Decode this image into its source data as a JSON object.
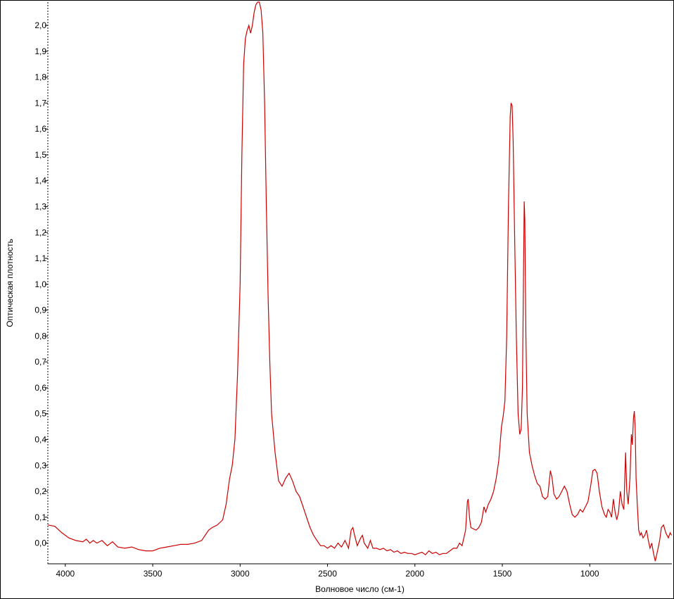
{
  "chart_data": {
    "type": "line",
    "title": "",
    "xlabel": "Волновое число (см-1)",
    "ylabel": "Оптическая плотность",
    "x_reversed": true,
    "xlim": [
      4100,
      530
    ],
    "ylim": [
      -0.08,
      2.09
    ],
    "grid": false,
    "line_color": "#cc0000",
    "x_ticks": [
      {
        "value": 4000,
        "label": "4000"
      },
      {
        "value": 3500,
        "label": "3500"
      },
      {
        "value": 3000,
        "label": "3000"
      },
      {
        "value": 2500,
        "label": "2500"
      },
      {
        "value": 2000,
        "label": "2000"
      },
      {
        "value": 1500,
        "label": "1500"
      },
      {
        "value": 1000,
        "label": "1000"
      }
    ],
    "y_ticks": [
      {
        "value": 0.0,
        "label": "0,0"
      },
      {
        "value": 0.1,
        "label": "0,1"
      },
      {
        "value": 0.2,
        "label": "0,2"
      },
      {
        "value": 0.3,
        "label": "0,3"
      },
      {
        "value": 0.4,
        "label": "0,4"
      },
      {
        "value": 0.5,
        "label": "0,5"
      },
      {
        "value": 0.6,
        "label": "0,6"
      },
      {
        "value": 0.7,
        "label": "0,7"
      },
      {
        "value": 0.8,
        "label": "0,8"
      },
      {
        "value": 0.9,
        "label": "0,9"
      },
      {
        "value": 1.0,
        "label": "1,0"
      },
      {
        "value": 1.1,
        "label": "1,1"
      },
      {
        "value": 1.2,
        "label": "1,2"
      },
      {
        "value": 1.3,
        "label": "1,3"
      },
      {
        "value": 1.4,
        "label": "1,4"
      },
      {
        "value": 1.5,
        "label": "1,5"
      },
      {
        "value": 1.6,
        "label": "1,6"
      },
      {
        "value": 1.7,
        "label": "1,7"
      },
      {
        "value": 1.8,
        "label": "1,8"
      },
      {
        "value": 1.9,
        "label": "1,9"
      },
      {
        "value": 2.0,
        "label": "2,0"
      }
    ],
    "series": [
      {
        "points": [
          [
            4100,
            0.07
          ],
          [
            4060,
            0.065
          ],
          [
            4020,
            0.04
          ],
          [
            3980,
            0.02
          ],
          [
            3940,
            0.01
          ],
          [
            3900,
            0.005
          ],
          [
            3880,
            0.015
          ],
          [
            3860,
            0.0
          ],
          [
            3840,
            0.01
          ],
          [
            3820,
            0.0
          ],
          [
            3790,
            0.01
          ],
          [
            3760,
            -0.01
          ],
          [
            3730,
            0.005
          ],
          [
            3700,
            -0.015
          ],
          [
            3660,
            -0.02
          ],
          [
            3620,
            -0.015
          ],
          [
            3580,
            -0.025
          ],
          [
            3540,
            -0.03
          ],
          [
            3500,
            -0.03
          ],
          [
            3460,
            -0.02
          ],
          [
            3420,
            -0.015
          ],
          [
            3380,
            -0.01
          ],
          [
            3340,
            -0.005
          ],
          [
            3300,
            -0.005
          ],
          [
            3260,
            0.0
          ],
          [
            3220,
            0.01
          ],
          [
            3200,
            0.03
          ],
          [
            3180,
            0.05
          ],
          [
            3160,
            0.06
          ],
          [
            3130,
            0.07
          ],
          [
            3100,
            0.09
          ],
          [
            3080,
            0.15
          ],
          [
            3060,
            0.25
          ],
          [
            3045,
            0.3
          ],
          [
            3030,
            0.4
          ],
          [
            3015,
            0.65
          ],
          [
            3000,
            1.0
          ],
          [
            2990,
            1.5
          ],
          [
            2980,
            1.85
          ],
          [
            2970,
            1.95
          ],
          [
            2960,
            1.98
          ],
          [
            2950,
            2.0
          ],
          [
            2940,
            1.97
          ],
          [
            2930,
            2.0
          ],
          [
            2920,
            2.05
          ],
          [
            2910,
            2.08
          ],
          [
            2900,
            2.09
          ],
          [
            2890,
            2.09
          ],
          [
            2880,
            2.06
          ],
          [
            2870,
            1.97
          ],
          [
            2860,
            1.7
          ],
          [
            2850,
            1.3
          ],
          [
            2840,
            0.95
          ],
          [
            2830,
            0.7
          ],
          [
            2820,
            0.5
          ],
          [
            2800,
            0.35
          ],
          [
            2780,
            0.24
          ],
          [
            2760,
            0.22
          ],
          [
            2740,
            0.25
          ],
          [
            2720,
            0.27
          ],
          [
            2700,
            0.24
          ],
          [
            2680,
            0.2
          ],
          [
            2660,
            0.18
          ],
          [
            2640,
            0.14
          ],
          [
            2620,
            0.1
          ],
          [
            2600,
            0.06
          ],
          [
            2580,
            0.03
          ],
          [
            2560,
            0.01
          ],
          [
            2540,
            -0.01
          ],
          [
            2520,
            -0.01
          ],
          [
            2500,
            -0.02
          ],
          [
            2480,
            -0.01
          ],
          [
            2460,
            -0.02
          ],
          [
            2440,
            0.0
          ],
          [
            2420,
            -0.015
          ],
          [
            2400,
            0.01
          ],
          [
            2380,
            -0.02
          ],
          [
            2365,
            0.05
          ],
          [
            2355,
            0.06
          ],
          [
            2345,
            0.03
          ],
          [
            2330,
            -0.01
          ],
          [
            2310,
            0.02
          ],
          [
            2300,
            0.03
          ],
          [
            2290,
            0.0
          ],
          [
            2270,
            -0.02
          ],
          [
            2255,
            0.01
          ],
          [
            2240,
            -0.02
          ],
          [
            2220,
            -0.02
          ],
          [
            2200,
            -0.025
          ],
          [
            2180,
            -0.02
          ],
          [
            2160,
            -0.03
          ],
          [
            2140,
            -0.025
          ],
          [
            2120,
            -0.035
          ],
          [
            2100,
            -0.03
          ],
          [
            2080,
            -0.04
          ],
          [
            2060,
            -0.035
          ],
          [
            2040,
            -0.04
          ],
          [
            2020,
            -0.04
          ],
          [
            2000,
            -0.045
          ],
          [
            1980,
            -0.04
          ],
          [
            1960,
            -0.035
          ],
          [
            1940,
            -0.045
          ],
          [
            1920,
            -0.03
          ],
          [
            1900,
            -0.04
          ],
          [
            1880,
            -0.035
          ],
          [
            1860,
            -0.045
          ],
          [
            1840,
            -0.04
          ],
          [
            1820,
            -0.04
          ],
          [
            1800,
            -0.03
          ],
          [
            1780,
            -0.02
          ],
          [
            1760,
            -0.02
          ],
          [
            1745,
            0.0
          ],
          [
            1730,
            -0.01
          ],
          [
            1720,
            0.02
          ],
          [
            1710,
            0.05
          ],
          [
            1700,
            0.16
          ],
          [
            1695,
            0.17
          ],
          [
            1688,
            0.1
          ],
          [
            1680,
            0.06
          ],
          [
            1665,
            0.055
          ],
          [
            1650,
            0.05
          ],
          [
            1635,
            0.06
          ],
          [
            1620,
            0.08
          ],
          [
            1605,
            0.14
          ],
          [
            1595,
            0.12
          ],
          [
            1580,
            0.15
          ],
          [
            1565,
            0.17
          ],
          [
            1550,
            0.2
          ],
          [
            1535,
            0.25
          ],
          [
            1520,
            0.32
          ],
          [
            1505,
            0.45
          ],
          [
            1495,
            0.49
          ],
          [
            1485,
            0.55
          ],
          [
            1475,
            0.8
          ],
          [
            1465,
            1.3
          ],
          [
            1455,
            1.65
          ],
          [
            1450,
            1.7
          ],
          [
            1444,
            1.69
          ],
          [
            1438,
            1.55
          ],
          [
            1430,
            1.2
          ],
          [
            1420,
            0.8
          ],
          [
            1410,
            0.5
          ],
          [
            1400,
            0.42
          ],
          [
            1392,
            0.44
          ],
          [
            1385,
            0.6
          ],
          [
            1378,
            1.1
          ],
          [
            1375,
            1.32
          ],
          [
            1371,
            1.25
          ],
          [
            1365,
            0.8
          ],
          [
            1358,
            0.5
          ],
          [
            1345,
            0.35
          ],
          [
            1330,
            0.3
          ],
          [
            1315,
            0.26
          ],
          [
            1300,
            0.23
          ],
          [
            1285,
            0.22
          ],
          [
            1270,
            0.18
          ],
          [
            1255,
            0.17
          ],
          [
            1240,
            0.18
          ],
          [
            1225,
            0.28
          ],
          [
            1215,
            0.25
          ],
          [
            1205,
            0.19
          ],
          [
            1190,
            0.17
          ],
          [
            1175,
            0.18
          ],
          [
            1160,
            0.2
          ],
          [
            1145,
            0.22
          ],
          [
            1130,
            0.2
          ],
          [
            1115,
            0.15
          ],
          [
            1100,
            0.11
          ],
          [
            1085,
            0.1
          ],
          [
            1070,
            0.11
          ],
          [
            1055,
            0.13
          ],
          [
            1040,
            0.12
          ],
          [
            1025,
            0.14
          ],
          [
            1010,
            0.16
          ],
          [
            995,
            0.22
          ],
          [
            982,
            0.28
          ],
          [
            970,
            0.285
          ],
          [
            958,
            0.27
          ],
          [
            945,
            0.2
          ],
          [
            930,
            0.14
          ],
          [
            915,
            0.11
          ],
          [
            905,
            0.1
          ],
          [
            895,
            0.13
          ],
          [
            885,
            0.12
          ],
          [
            875,
            0.1
          ],
          [
            865,
            0.17
          ],
          [
            855,
            0.12
          ],
          [
            845,
            0.09
          ],
          [
            835,
            0.12
          ],
          [
            825,
            0.2
          ],
          [
            815,
            0.15
          ],
          [
            805,
            0.13
          ],
          [
            795,
            0.35
          ],
          [
            788,
            0.2
          ],
          [
            780,
            0.15
          ],
          [
            770,
            0.25
          ],
          [
            762,
            0.42
          ],
          [
            756,
            0.38
          ],
          [
            750,
            0.48
          ],
          [
            745,
            0.51
          ],
          [
            740,
            0.45
          ],
          [
            735,
            0.25
          ],
          [
            728,
            0.15
          ],
          [
            720,
            0.05
          ],
          [
            712,
            0.03
          ],
          [
            705,
            0.04
          ],
          [
            695,
            0.02
          ],
          [
            685,
            0.03
          ],
          [
            675,
            0.05
          ],
          [
            665,
            0.01
          ],
          [
            655,
            -0.02
          ],
          [
            645,
            0.0
          ],
          [
            635,
            -0.04
          ],
          [
            625,
            -0.07
          ],
          [
            612,
            -0.03
          ],
          [
            600,
            0.01
          ],
          [
            590,
            0.06
          ],
          [
            578,
            0.07
          ],
          [
            565,
            0.04
          ],
          [
            550,
            0.02
          ],
          [
            540,
            0.04
          ],
          [
            532,
            0.03
          ]
        ]
      }
    ]
  }
}
